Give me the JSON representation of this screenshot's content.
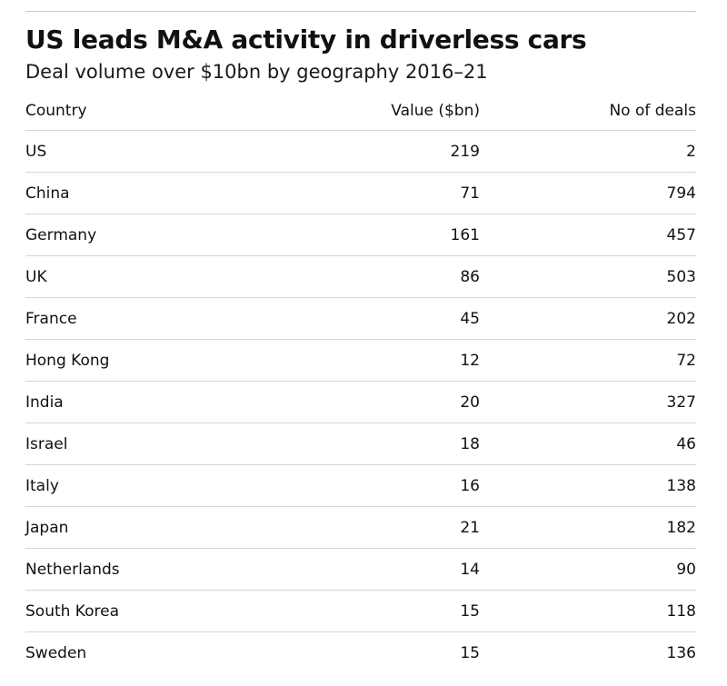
{
  "chart_data": {
    "type": "table",
    "title": "US leads M&A activity in driverless cars",
    "subtitle": "Deal volume over $10bn by geography 2016–21",
    "columns": [
      "Country",
      "Value ($bn)",
      "No of deals"
    ],
    "rows": [
      [
        "US",
        "219",
        "2"
      ],
      [
        "China",
        "71",
        "794"
      ],
      [
        "Germany",
        "161",
        "457"
      ],
      [
        "UK",
        "86",
        "503"
      ],
      [
        "France",
        "45",
        "202"
      ],
      [
        "Hong Kong",
        "12",
        "72"
      ],
      [
        "India",
        "20",
        "327"
      ],
      [
        "Israel",
        "18",
        "46"
      ],
      [
        "Italy",
        "16",
        "138"
      ],
      [
        "Japan",
        "21",
        "182"
      ],
      [
        "Netherlands",
        "14",
        "90"
      ],
      [
        "South Korea",
        "15",
        "118"
      ],
      [
        "Sweden",
        "15",
        "136"
      ]
    ]
  }
}
